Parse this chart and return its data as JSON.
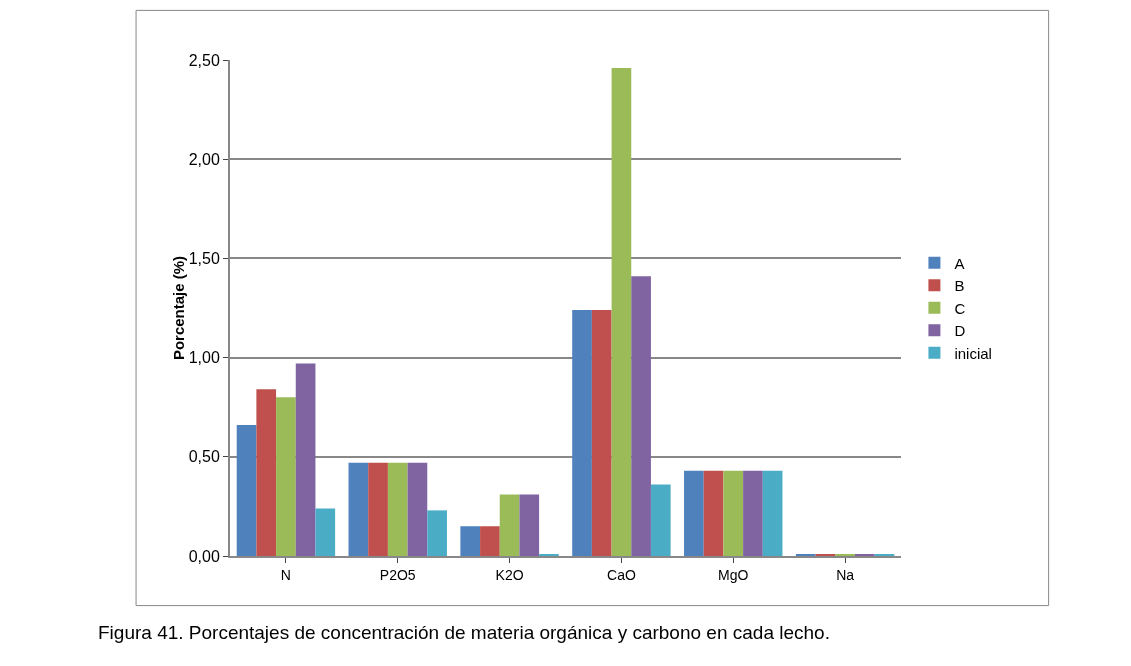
{
  "chart_data": {
    "type": "bar",
    "ylabel": "Porcentaje (%)",
    "categories": [
      "N",
      "P2O5",
      "K2O",
      "CaO",
      "MgO",
      "Na"
    ],
    "series": [
      {
        "name": "A",
        "color": "#4f81bd",
        "values": [
          0.66,
          0.47,
          0.15,
          1.24,
          0.43,
          0.01
        ]
      },
      {
        "name": "B",
        "color": "#c0504d",
        "values": [
          0.84,
          0.47,
          0.15,
          1.24,
          0.43,
          0.01
        ]
      },
      {
        "name": "C",
        "color": "#9bbb59",
        "values": [
          0.8,
          0.47,
          0.31,
          2.46,
          0.43,
          0.01
        ]
      },
      {
        "name": "D",
        "color": "#8064a2",
        "values": [
          0.97,
          0.47,
          0.31,
          1.41,
          0.43,
          0.01
        ]
      },
      {
        "name": "inicial",
        "color": "#4bacc6",
        "values": [
          0.24,
          0.23,
          0.01,
          0.36,
          0.43,
          0.01
        ]
      }
    ],
    "ylim": [
      0,
      2.5
    ],
    "yticks": [
      {
        "value": 0,
        "label": "0,00"
      },
      {
        "value": 0.5,
        "label": "0,50"
      },
      {
        "value": 1,
        "label": "1,00"
      },
      {
        "value": 1.5,
        "label": "1,50"
      },
      {
        "value": 2,
        "label": "2,00"
      },
      {
        "value": 2.5,
        "label": "2,50"
      }
    ],
    "grid": "y",
    "legend": "right",
    "annotations": [
      "Figura 41. Porcentajes de concentración de materia orgánica y carbono en cada lecho."
    ]
  }
}
